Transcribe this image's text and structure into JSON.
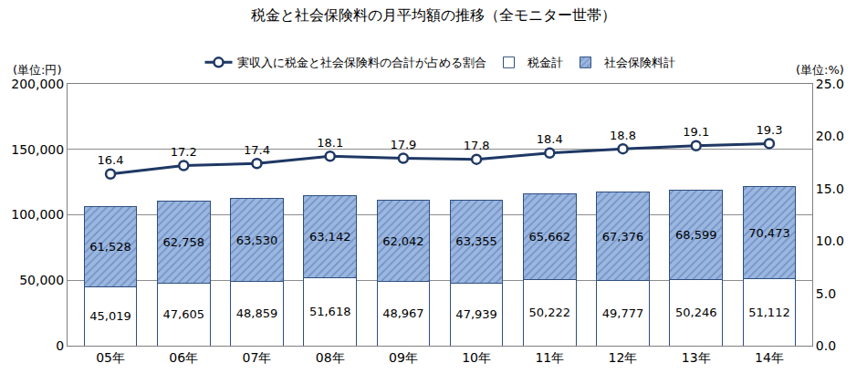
{
  "chart_data": {
    "type": "bar",
    "title": "税金と社会保険料の月平均額の推移（全モニター世帯）",
    "y_label": "(単位:円)",
    "y2_label": "(単位:%)",
    "stacked": true,
    "data_labels": true,
    "grid": true,
    "legend": "top",
    "categories": [
      "05年",
      "06年",
      "07年",
      "08年",
      "09年",
      "10年",
      "11年",
      "12年",
      "13年",
      "14年"
    ],
    "ylim": [
      0,
      200000
    ],
    "yticks": [
      0,
      {
        "value": 50000,
        "label": "50,000"
      },
      {
        "value": 100000,
        "label": "100,000"
      },
      {
        "value": 150000,
        "label": "150,000"
      },
      {
        "value": 200000,
        "label": "200,000"
      }
    ],
    "y2lim": [
      0,
      25
    ],
    "y2ticks": [
      {
        "value": 0,
        "label": "0.0"
      },
      {
        "value": 5,
        "label": "5.0"
      },
      {
        "value": 10,
        "label": "10.0"
      },
      {
        "value": 15,
        "label": "15.0"
      },
      {
        "value": 20,
        "label": "20.0"
      },
      {
        "value": 25,
        "label": "25.0"
      }
    ],
    "series": [
      {
        "name": "社会保険料計",
        "type": "bar",
        "color": "#9bb7e0",
        "values": [
          61528,
          62758,
          63530,
          63142,
          62042,
          63355,
          65662,
          67376,
          68599,
          70473
        ],
        "value_labels": [
          "61,528",
          "62,758",
          "63,530",
          "63,142",
          "62,042",
          "63,355",
          "65,662",
          "67,376",
          "68,599",
          "70,473"
        ]
      },
      {
        "name": "税金計",
        "type": "bar",
        "color": "#ffffff",
        "values": [
          45019,
          47605,
          48859,
          51618,
          48967,
          47939,
          50222,
          49777,
          50246,
          51112
        ],
        "value_labels": [
          "45,019",
          "47,605",
          "48,859",
          "51,618",
          "48,967",
          "47,939",
          "50,222",
          "49,777",
          "50,246",
          "51,112"
        ]
      },
      {
        "name": "実収入に税金と社会保険料の合計が占める割合",
        "type": "line",
        "axis": "y2",
        "color": "#1f3864",
        "marker": "circle",
        "values": [
          16.4,
          17.2,
          17.4,
          18.1,
          17.9,
          17.8,
          18.4,
          18.8,
          19.1,
          19.3
        ]
      }
    ]
  }
}
